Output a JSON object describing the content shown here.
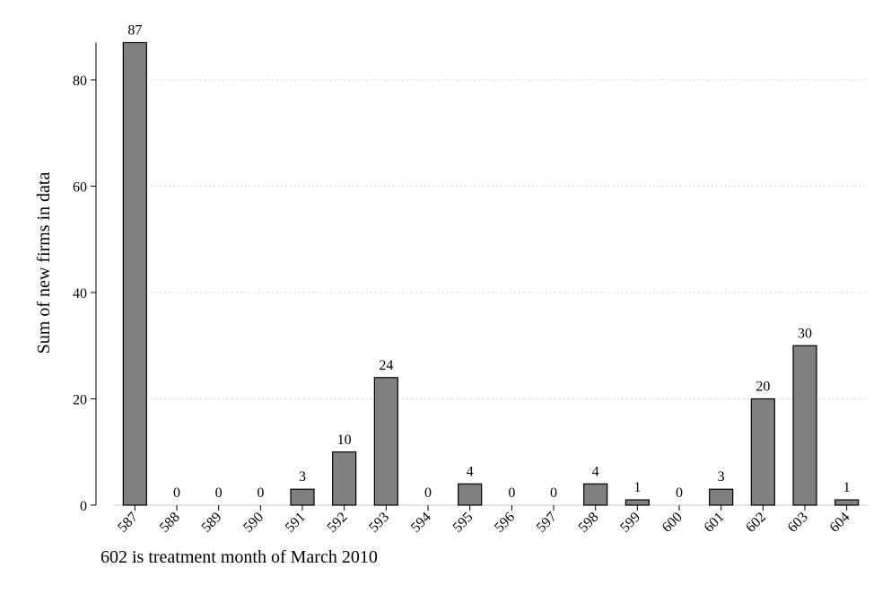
{
  "chart_data": {
    "type": "bar",
    "categories": [
      "587",
      "588",
      "589",
      "590",
      "591",
      "592",
      "593",
      "594",
      "595",
      "596",
      "597",
      "598",
      "599",
      "600",
      "601",
      "602",
      "603",
      "604"
    ],
    "values": [
      87,
      0,
      0,
      0,
      3,
      10,
      24,
      0,
      4,
      0,
      0,
      4,
      1,
      0,
      3,
      20,
      30,
      1
    ],
    "data_labels": [
      "87",
      "0",
      "0",
      "0",
      "3",
      "10",
      "24",
      "0",
      "4",
      "0",
      "0",
      "4",
      "1",
      "0",
      "3",
      "20",
      "30",
      "1"
    ],
    "title": "",
    "xlabel": "",
    "ylabel": "Sum of new firms in data",
    "ylim": [
      0,
      87
    ],
    "yticks": [
      0,
      20,
      40,
      60,
      80
    ],
    "ytick_labels": [
      "0",
      "20",
      "40",
      "60",
      "80"
    ],
    "grid": true,
    "legend": "none",
    "colors": {
      "bar_fill": "#808080",
      "bar_stroke": "#000000",
      "grid": "#c8c8c8",
      "axis": "#000000"
    }
  },
  "note": "602 is treatment month of March 2010"
}
